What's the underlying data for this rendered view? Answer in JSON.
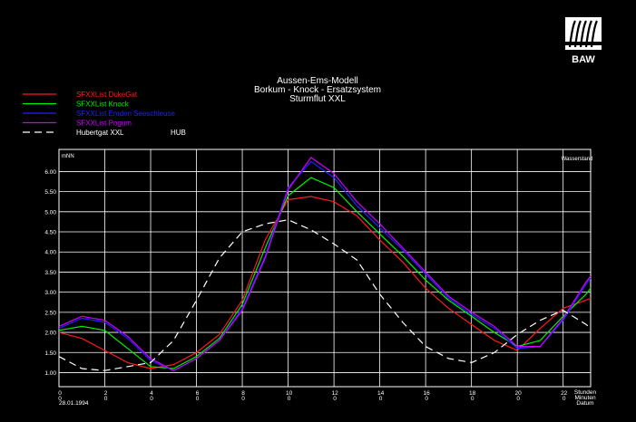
{
  "logo": {
    "text": "BAW"
  },
  "chart_data": {
    "type": "line",
    "title": [
      "Aussen-Ems-Modell",
      "Borkum - Knock - Ersatzsystem",
      "Sturmflut XXL"
    ],
    "ylabel_unit": "mNN",
    "panel_label": "Wasserstand",
    "x_tick_labels": [
      "0",
      "2",
      "4",
      "6",
      "8",
      "10",
      "12",
      "14",
      "16",
      "18",
      "20",
      "22"
    ],
    "x_tick_sublabels": [
      "0",
      "0",
      "0",
      "0",
      "0",
      "0",
      "0",
      "0",
      "0",
      "0",
      "0",
      "0"
    ],
    "date_label": "28.01.1994",
    "x_axis_captions": [
      "Stunden",
      "Minuten",
      "Datum"
    ],
    "xlim": [
      0,
      23.2
    ],
    "ylim": [
      0.65,
      6.55
    ],
    "y_ticks": [
      "1.00",
      "1.50",
      "2.00",
      "2.50",
      "3.00",
      "3.50",
      "4.00",
      "4.50",
      "5.00",
      "5.50",
      "6.00"
    ],
    "series": [
      {
        "name": "SFXXList DukeGat",
        "color": "#ff1a1a",
        "dash": false,
        "points": [
          [
            0,
            2.0
          ],
          [
            1,
            1.85
          ],
          [
            2,
            1.55
          ],
          [
            3,
            1.25
          ],
          [
            4,
            1.1
          ],
          [
            5,
            1.2
          ],
          [
            6,
            1.5
          ],
          [
            7,
            1.95
          ],
          [
            8,
            2.8
          ],
          [
            9,
            4.3
          ],
          [
            10,
            5.3
          ],
          [
            11,
            5.38
          ],
          [
            12,
            5.25
          ],
          [
            13,
            4.9
          ],
          [
            14,
            4.3
          ],
          [
            15,
            3.75
          ],
          [
            16,
            3.1
          ],
          [
            17,
            2.6
          ],
          [
            18,
            2.2
          ],
          [
            19,
            1.8
          ],
          [
            20,
            1.55
          ],
          [
            21,
            2.1
          ],
          [
            22,
            2.6
          ],
          [
            23,
            2.8
          ],
          [
            23.2,
            2.85
          ]
        ]
      },
      {
        "name": "SFXXList Knock",
        "color": "#00ee00",
        "dash": false,
        "points": [
          [
            0,
            2.05
          ],
          [
            1,
            2.15
          ],
          [
            2,
            2.05
          ],
          [
            3,
            1.6
          ],
          [
            4,
            1.15
          ],
          [
            5,
            1.1
          ],
          [
            6,
            1.4
          ],
          [
            7,
            1.85
          ],
          [
            8,
            2.7
          ],
          [
            9,
            4.1
          ],
          [
            10,
            5.4
          ],
          [
            11,
            5.85
          ],
          [
            12,
            5.6
          ],
          [
            13,
            5.0
          ],
          [
            14,
            4.45
          ],
          [
            15,
            3.9
          ],
          [
            16,
            3.3
          ],
          [
            17,
            2.8
          ],
          [
            18,
            2.4
          ],
          [
            19,
            2.0
          ],
          [
            20,
            1.65
          ],
          [
            21,
            1.8
          ],
          [
            22,
            2.4
          ],
          [
            23,
            2.95
          ],
          [
            23.2,
            3.1
          ]
        ]
      },
      {
        "name": "SFXXList Emden Seeschleuse",
        "color": "#2020ff",
        "dash": false,
        "points": [
          [
            0,
            2.1
          ],
          [
            1,
            2.35
          ],
          [
            2,
            2.25
          ],
          [
            3,
            1.85
          ],
          [
            4,
            1.3
          ],
          [
            5,
            1.05
          ],
          [
            6,
            1.35
          ],
          [
            7,
            1.8
          ],
          [
            8,
            2.6
          ],
          [
            9,
            3.9
          ],
          [
            10,
            5.6
          ],
          [
            11,
            6.25
          ],
          [
            12,
            5.85
          ],
          [
            13,
            5.15
          ],
          [
            14,
            4.6
          ],
          [
            15,
            4.05
          ],
          [
            16,
            3.45
          ],
          [
            17,
            2.85
          ],
          [
            18,
            2.45
          ],
          [
            19,
            2.1
          ],
          [
            20,
            1.6
          ],
          [
            21,
            1.65
          ],
          [
            22,
            2.3
          ],
          [
            23,
            3.2
          ],
          [
            23.2,
            3.35
          ]
        ]
      },
      {
        "name": "SFXXList Pogum",
        "color": "#cc00ff",
        "dash": false,
        "points": [
          [
            0,
            2.15
          ],
          [
            1,
            2.4
          ],
          [
            2,
            2.3
          ],
          [
            3,
            1.9
          ],
          [
            4,
            1.35
          ],
          [
            5,
            1.05
          ],
          [
            6,
            1.35
          ],
          [
            7,
            1.8
          ],
          [
            8,
            2.55
          ],
          [
            9,
            3.85
          ],
          [
            10,
            5.55
          ],
          [
            11,
            6.35
          ],
          [
            12,
            5.95
          ],
          [
            13,
            5.25
          ],
          [
            14,
            4.7
          ],
          [
            15,
            4.1
          ],
          [
            16,
            3.5
          ],
          [
            17,
            2.9
          ],
          [
            18,
            2.5
          ],
          [
            19,
            2.15
          ],
          [
            20,
            1.65
          ],
          [
            21,
            1.65
          ],
          [
            22,
            2.35
          ],
          [
            23,
            3.25
          ],
          [
            23.2,
            3.4
          ]
        ]
      },
      {
        "name": "Hubertgat XXL",
        "extra_label": "HUB",
        "color": "#ffffff",
        "dash": true,
        "points": [
          [
            0,
            1.4
          ],
          [
            1,
            1.1
          ],
          [
            2,
            1.05
          ],
          [
            3,
            1.15
          ],
          [
            4,
            1.25
          ],
          [
            5,
            1.8
          ],
          [
            6,
            2.8
          ],
          [
            7,
            3.85
          ],
          [
            8,
            4.5
          ],
          [
            9,
            4.7
          ],
          [
            10,
            4.8
          ],
          [
            11,
            4.55
          ],
          [
            12,
            4.2
          ],
          [
            13,
            3.8
          ],
          [
            14,
            2.95
          ],
          [
            15,
            2.25
          ],
          [
            16,
            1.65
          ],
          [
            17,
            1.35
          ],
          [
            18,
            1.25
          ],
          [
            19,
            1.5
          ],
          [
            20,
            1.95
          ],
          [
            21,
            2.3
          ],
          [
            22,
            2.55
          ],
          [
            23,
            2.2
          ],
          [
            23.2,
            2.1
          ]
        ]
      }
    ]
  }
}
